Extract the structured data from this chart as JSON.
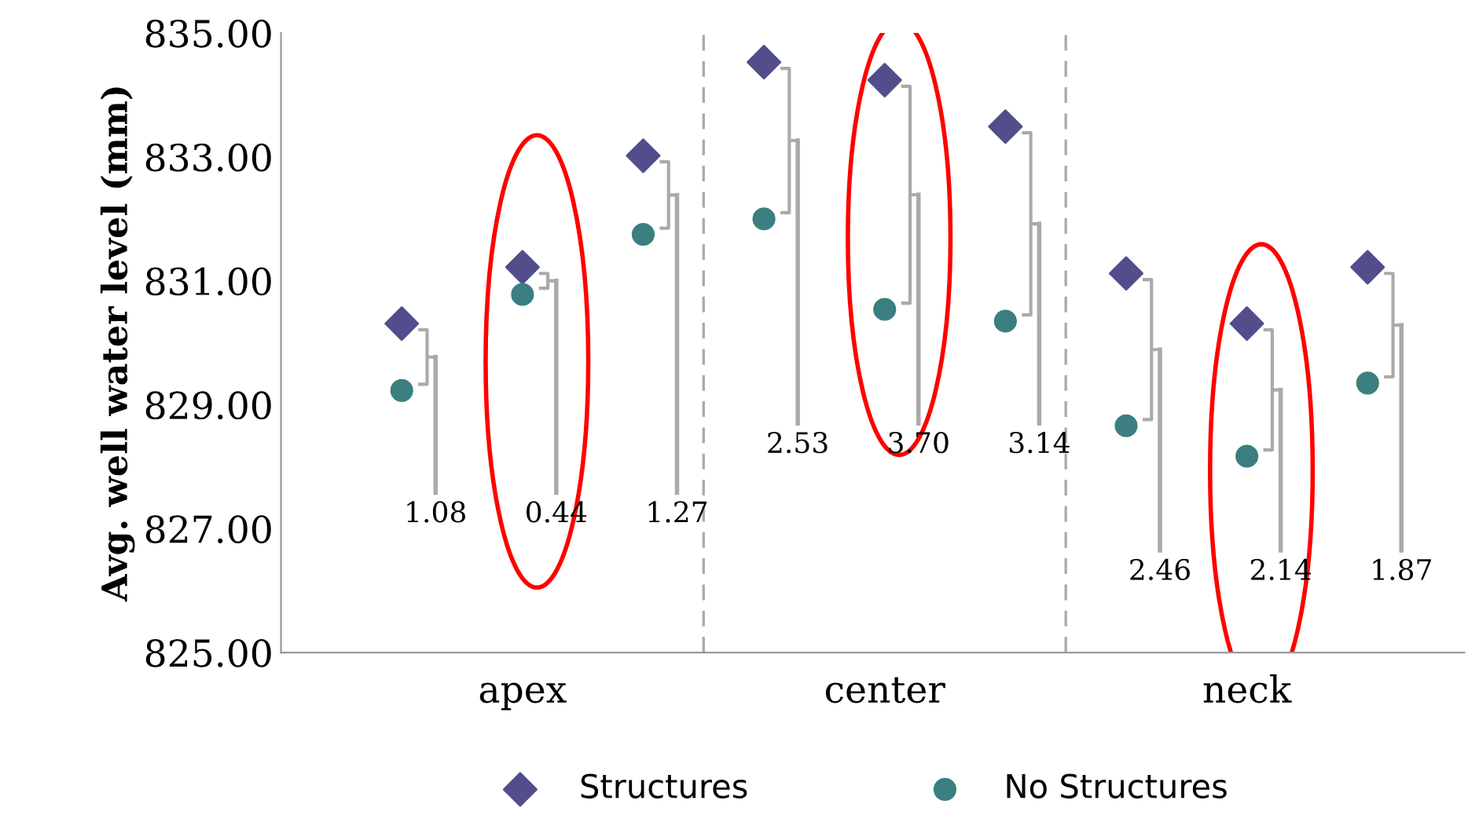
{
  "chart_data": {
    "type": "scatter",
    "ylabel": "Avg. well water level (mm)",
    "categories": [
      null,
      "apex",
      null,
      null,
      "center",
      null,
      null,
      "neck",
      null
    ],
    "series": [
      {
        "name": "Structures",
        "color": "#524e8c",
        "marker": "diamond",
        "values": [
          830.31,
          831.22,
          833.02,
          834.53,
          834.24,
          833.49,
          831.12,
          830.31,
          831.22
        ]
      },
      {
        "name": "No Structures",
        "color": "#3b7f80",
        "marker": "circle",
        "values": [
          829.23,
          830.78,
          831.75,
          832.0,
          830.54,
          830.35,
          828.66,
          828.17,
          829.35
        ]
      }
    ],
    "ylim": [
      825,
      835
    ],
    "yticks": [
      {
        "value": 825,
        "label": "825.00"
      },
      {
        "value": 827,
        "label": "827.00"
      },
      {
        "value": 829,
        "label": "829.00"
      },
      {
        "value": 831,
        "label": "831.00"
      },
      {
        "value": 833,
        "label": "833.00"
      },
      {
        "value": 835,
        "label": "835.00"
      }
    ],
    "annotations": [
      "1.08",
      "0.44",
      "1.27",
      "2.53",
      "3.70",
      "3.14",
      "2.46",
      "2.14",
      "1.87"
    ],
    "grid": false,
    "legend": "bottom"
  }
}
